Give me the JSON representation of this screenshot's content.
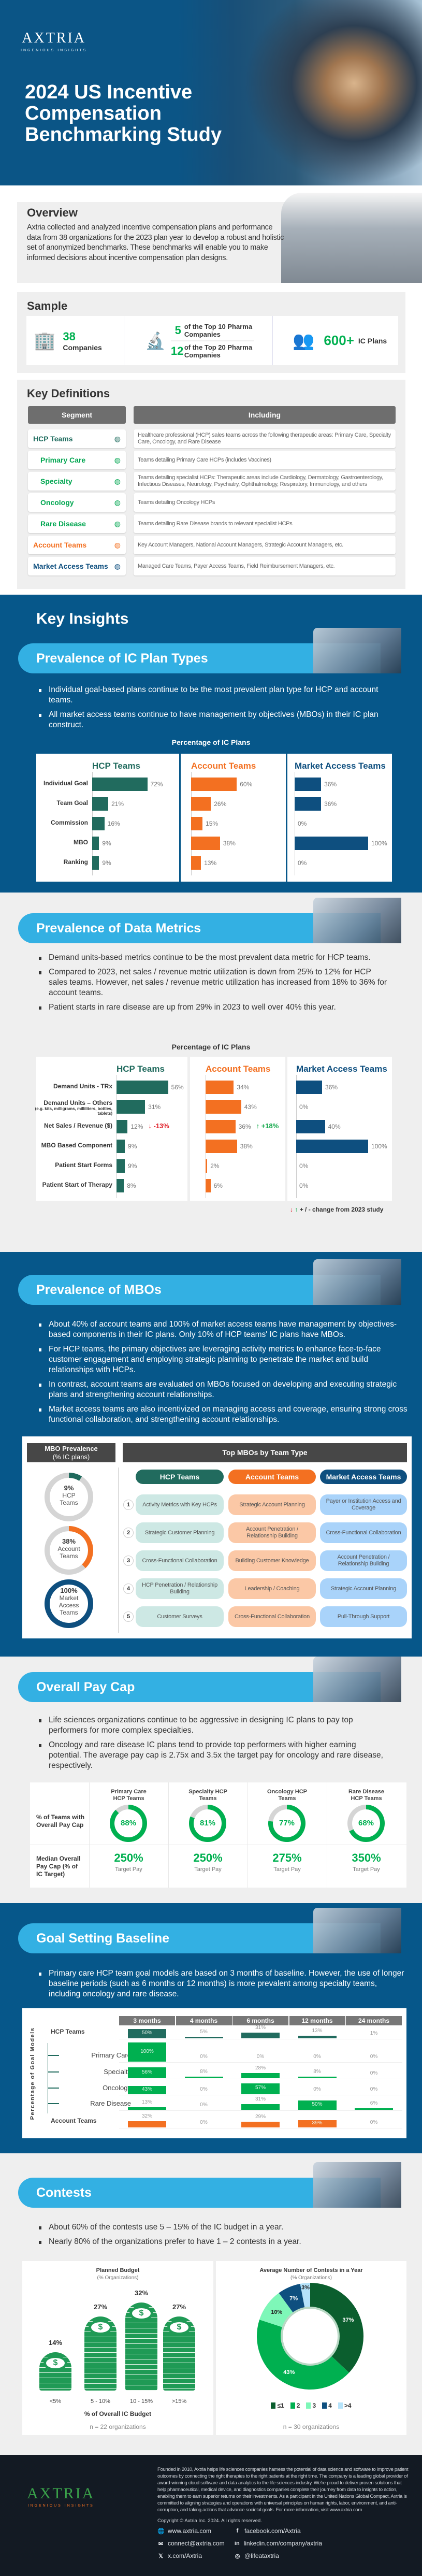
{
  "hero": {
    "logo": "AXTRIA",
    "tagline": "INGENIOUS INSIGHTS",
    "title_lines": [
      "2024 US Incentive",
      "Compensation",
      "Benchmarking Study"
    ]
  },
  "overview": {
    "title": "Overview",
    "text": "Axtria collected and analyzed incentive compensation plans and performance data from 38 organizations for the 2023 plan year to develop a robust and holistic set of anonymized benchmarks. These benchmarks will enable you to make informed decisions about incentive compensation plan designs."
  },
  "sample": {
    "title": "Sample",
    "companies_num": "38",
    "companies_label": "Companies",
    "top10_num": "5",
    "top10_label": "of the Top 10 Pharma Companies",
    "top20_num": "12",
    "top20_label": "of the Top 20 Pharma Companies",
    "plans_num": "600+",
    "plans_label": "IC Plans"
  },
  "definitions": {
    "title": "Key Definitions",
    "col_segment": "Segment",
    "col_including": "Including",
    "rows": [
      {
        "segment": "HCP Teams",
        "including": "Healthcare professional (HCP) sales teams across the following therapeutic areas: Primary Care, Specialty Care, Oncology, and Rare Disease",
        "color": "#1d6b5d"
      },
      {
        "segment": "Primary Care",
        "including": "Teams detailing Primary Care HCPs (includes Vaccines)",
        "color": "#00a650"
      },
      {
        "segment": "Specialty",
        "including": "Teams detailing specialist HCPs: Therapeutic areas include Cardiology, Dermatology, Gastroenterology, Infectious Diseases, Neurology, Psychiatry, Ophthalmology, Respiratory, Immunology, and others",
        "color": "#00a650"
      },
      {
        "segment": "Oncology",
        "including": "Teams detailing Oncology HCPs",
        "color": "#00a650"
      },
      {
        "segment": "Rare Disease",
        "including": "Teams detailing Rare Disease brands to relevant specialist HCPs",
        "color": "#00a650"
      },
      {
        "segment": "Account Teams",
        "including": "Key Account Managers, National Account Managers, Strategic Account Managers, etc.",
        "color": "#f37021"
      },
      {
        "segment": "Market Access Teams",
        "including": "Managed Care Teams, Payer Access Teams, Field Reimbursement Managers, etc.",
        "color": "#0e4f7f"
      }
    ]
  },
  "key_insights": {
    "title": "Key Insights"
  },
  "plan_types": {
    "title": "Prevalence of IC Plan Types",
    "bullets": [
      "Individual goal-based plans continue to be the most prevalent plan type for HCP and account teams.",
      "All market access  teams continue to have management by objectives (MBOs) in their IC plan construct."
    ]
  },
  "data_metrics": {
    "title": "Prevalence of Data Metrics",
    "bullets": [
      "Demand units-based metrics continue to be the most prevalent data metric for HCP teams.",
      "Compared to 2023, net sales / revenue metric utilization is down from 25% to 12% for HCP sales teams. However, net sales / revenue metric utilization has increased from 18% to 36% for account teams.",
      "Patient starts in rare disease are up from 29% in 2023 to well over 40% this year."
    ],
    "legend": "+ / - change from 2023 study"
  },
  "mbos": {
    "title": "Prevalence of MBOs",
    "bullets": [
      "About 40% of account teams and 100% of market access teams have management by objectives-based components in their IC plans. Only 10% of HCP teams' IC plans have MBOs.",
      "For HCP teams, the primary objectives are leveraging activity metrics to enhance face-to-face customer engagement and employing strategic planning to penetrate the market and build relationships with HCPs.",
      "In contrast, account teams are evaluated  on MBOs focused on developing and executing strategic plans and strengthening account relationships.",
      "Market access teams are also incentivized on managing access and coverage, ensuring strong cross functional collaboration, and strengthening account relationships."
    ],
    "prevalence_header": "MBO Prevalence",
    "prevalence_sub": "(% IC plans)",
    "top_header": "Top MBOs by Team Type",
    "teams": [
      "HCP Teams",
      "Account Teams",
      "Market Access Teams"
    ],
    "ranks": [
      "1",
      "2",
      "3",
      "4",
      "5"
    ],
    "top_mbos": [
      [
        "Activity Metrics with Key HCPs",
        "Strategic Account Planning",
        "Payer or Institution Access and Coverage"
      ],
      [
        "Strategic Customer Planning",
        "Account Penetration / Relationship Building",
        "Cross-Functional Collaboration"
      ],
      [
        "Cross-Functional Collaboration",
        "Building Customer Knowledge",
        "Account Penetration / Relationship Building"
      ],
      [
        "HCP Penetration / Relationship Building",
        "Leadership / Coaching",
        "Strategic Account Planning"
      ],
      [
        "Customer Surveys",
        "Cross-Functional Collaboration",
        "Pull-Through Support"
      ]
    ]
  },
  "pay_cap": {
    "title": "Overall Pay Cap",
    "bullets": [
      "Life sciences organizations continue to be aggressive in designing IC plans to pay top performers for more complex specialties.",
      "Oncology and rare disease IC plans tend to provide top performers with higher earning potential. The average pay cap is 2.75x and 3.5x the target pay for oncology and rare disease, respectively."
    ],
    "row1_label": "% of Teams with Overall Pay Cap",
    "row2_label": "Median Overall Pay Cap (% of IC Target)",
    "target_label": "Target Pay"
  },
  "goal_setting": {
    "title": "Goal Setting Baseline",
    "bullets": [
      "Primary care HCP team goal models are based on 3 months of baseline. However, the use of longer baseline periods (such as 6 months or 12 months) is more prevalent among specialty teams, including oncology and rare disease."
    ]
  },
  "contests": {
    "title": "Contests",
    "bullets": [
      "About 60% of the contests use 5 – 15% of the IC budget in a year.",
      "Nearly 80% of the organizations prefer to have 1 – 2 contests in a year."
    ]
  },
  "footer": {
    "about": "Founded in 2010, Axtria helps life sciences companies harness the potential of data science and software to improve patient outcomes by connecting the right therapies to the right patients at the right time. The company is a leading global provider of award-winning cloud software and data analytics to the life sciences industry. We're proud to deliver proven solutions that help pharmaceutical, medical device, and diagnostics companies complete their journey from data to insights to action, enabling them to earn superior returns on their investments. As a participant in the United Nations Global Compact, Axtria is committed to aligning strategies and operations with universal principles on human rights, labor, environment, and anti-corruption, and taking actions that advance societal goals. For more information, visit www.axtria.com",
    "copyright": "Copyright © Axtria Inc. 2024. All rights reserved.",
    "links": [
      {
        "icon": "globe-icon",
        "text": "www.axtria.com"
      },
      {
        "icon": "facebook-icon",
        "text": "facebook.com/Axtria"
      },
      {
        "icon": "mail-icon",
        "text": "connect@axtria.com"
      },
      {
        "icon": "linkedin-icon",
        "text": "linkedin.com/company/axtria"
      },
      {
        "icon": "x-icon",
        "text": "x.com/Axtria"
      },
      {
        "icon": "instagram-icon",
        "text": "@lifeataxtria"
      }
    ]
  },
  "colors": {
    "hcp": "#216b5e",
    "account": "#f37021",
    "market_access": "#0e4f7f",
    "green": "#00b050",
    "navy": "#06578a",
    "pill": "#33b0e3",
    "down": "#e0202a",
    "up": "#12a84a"
  },
  "chart_data": [
    {
      "id": "plan_types",
      "type": "bar",
      "title": "Percentage of IC Plans",
      "categories": [
        "Individual Goal",
        "Team Goal",
        "Commission",
        "MBO",
        "Ranking"
      ],
      "series": [
        {
          "name": "HCP Teams",
          "values": [
            72,
            21,
            16,
            9,
            9
          ]
        },
        {
          "name": "Account Teams",
          "values": [
            60,
            26,
            15,
            38,
            13
          ]
        },
        {
          "name": "Market Access Teams",
          "values": [
            36,
            36,
            0,
            100,
            0
          ]
        }
      ]
    },
    {
      "id": "data_metrics",
      "type": "bar",
      "title": "Percentage of IC Plans",
      "categories": [
        "Demand Units - TRx",
        "Demand Units – Others",
        "Net Sales / Revenue ($)",
        "MBO Based Component",
        "Patient Start Forms",
        "Patient Start of Therapy"
      ],
      "category_notes": [
        "",
        "(e.g. kits, milligrams, milliliters, bottles, tablets)",
        "",
        "",
        "",
        ""
      ],
      "series": [
        {
          "name": "HCP Teams",
          "values": [
            56,
            31,
            12,
            9,
            9,
            8
          ],
          "changes": [
            null,
            null,
            "-13%",
            null,
            null,
            null
          ]
        },
        {
          "name": "Account Teams",
          "values": [
            34,
            43,
            36,
            38,
            2,
            6
          ],
          "changes": [
            null,
            null,
            "+18%",
            null,
            null,
            null
          ]
        },
        {
          "name": "Market Access Teams",
          "values": [
            36,
            0,
            40,
            100,
            0,
            0
          ],
          "changes": [
            null,
            null,
            null,
            null,
            null,
            null
          ]
        }
      ]
    },
    {
      "id": "mbo_prevalence",
      "type": "pie",
      "title": "MBO Prevalence",
      "categories": [
        "HCP Teams",
        "Account Teams",
        "Market Access Teams"
      ],
      "values": [
        9,
        38,
        100
      ]
    },
    {
      "id": "pay_cap",
      "type": "table",
      "categories": [
        "Primary Care HCP Teams",
        "Specialty HCP Teams",
        "Oncology HCP Teams",
        "Rare Disease HCP Teams"
      ],
      "pct_with_cap": [
        88,
        81,
        77,
        68
      ],
      "median_cap": [
        250,
        250,
        275,
        350
      ]
    },
    {
      "id": "goal_setting",
      "type": "bar",
      "ylabel": "Percentage of Goal Models",
      "categories": [
        "3 months",
        "4 months",
        "6 months",
        "12 months",
        "24 months"
      ],
      "series": [
        {
          "name": "HCP Teams",
          "values": [
            50,
            5,
            31,
            13,
            1
          ],
          "group": "hcp"
        },
        {
          "name": "Primary Care",
          "values": [
            100,
            0,
            0,
            0,
            0
          ],
          "group": "sub"
        },
        {
          "name": "Specialty",
          "values": [
            56,
            8,
            28,
            8,
            0
          ],
          "group": "sub"
        },
        {
          "name": "Oncology",
          "values": [
            43,
            0,
            57,
            0,
            0
          ],
          "group": "sub"
        },
        {
          "name": "Rare Disease",
          "values": [
            13,
            0,
            31,
            50,
            6
          ],
          "group": "sub"
        },
        {
          "name": "Account Teams",
          "values": [
            32,
            0,
            29,
            39,
            0
          ],
          "group": "account"
        }
      ]
    },
    {
      "id": "planned_budget",
      "type": "bar",
      "title": "Planned Budget",
      "subtitle": "(% Organizations)",
      "xlabel": "% of Overall IC Budget",
      "categories": [
        "<5%",
        "5 - 10%",
        "10 - 15%",
        ">15%"
      ],
      "values": [
        14,
        27,
        32,
        27
      ],
      "note": "n = 22 organizations"
    },
    {
      "id": "contests_per_year",
      "type": "pie",
      "title": "Average Number of Contests in a Year",
      "subtitle": "(% Organizations)",
      "categories": [
        "≤1",
        "2",
        "3",
        "4",
        ">4"
      ],
      "values": [
        37,
        43,
        10,
        7,
        3
      ],
      "colors": [
        "#0b5e2e",
        "#00b050",
        "#7ef7b8",
        "#0e4f7f",
        "#b6e3fa"
      ],
      "legend": "bottom",
      "note": "n = 30 organizations"
    }
  ]
}
